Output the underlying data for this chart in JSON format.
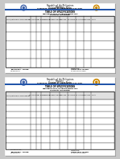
{
  "bg_color": "#c8c8c8",
  "page_color": "#ffffff",
  "page_shadow": "#aaaaaa",
  "title_line1": "Republic of the Philippines",
  "title_line2": "Region I",
  "title_line3": "Division of Ilocos Norte",
  "title_line4": "SAMANG NORTE ELEMENTARY SCHOOL",
  "doc_title": "TABLE OF SPECIFICATIONS",
  "subject_label": "in",
  "subject_top": "MATHEMATICS/SCIENCE/ENGLISH",
  "quarter_top": "FOURTH QUARTER",
  "subject_bottom": "MATHEMATICS/SCIENCE/ENGLISH",
  "quarter_bottom": "FOURTH QUARTER",
  "banner_color": "#2255aa",
  "banner2_color": "#cc0000",
  "col_headers": [
    "TOPIC/LEARNING COMPETENCIES",
    "NO. OF DAYS",
    "No.",
    "REMEMBERING",
    "UNDERSTANDING",
    "APPLYING",
    "ANALYZING",
    "EVALUATING",
    "CREATING",
    "TOTAL"
  ],
  "header_bg": "#e8e8e8",
  "footer_left1": "Prepared by:",
  "footer_left2": "TEACHER I. NAME",
  "footer_left3": "Teacher III",
  "footer_right1": "Noted by:",
  "footer_right2": "PRINCIPAL NAME",
  "footer_right3": "School Principal I",
  "logo_color_left": "#4466aa",
  "logo_color_right": "#cc8800"
}
